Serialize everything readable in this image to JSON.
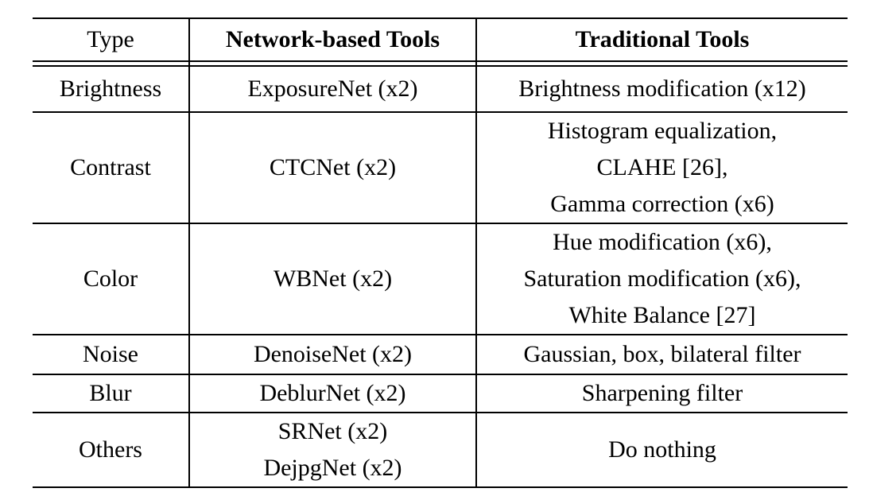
{
  "table": {
    "headers": [
      "Type",
      "Network-based Tools",
      "Traditional Tools"
    ],
    "rows": [
      {
        "type": "Brightness",
        "network": [
          "ExposureNet (x2)"
        ],
        "traditional": [
          "Brightness modification (x12)"
        ]
      },
      {
        "type": "Contrast",
        "network": [
          "CTCNet (x2)"
        ],
        "traditional": [
          "Histogram equalization,",
          "CLAHE [26],",
          "Gamma correction (x6)"
        ]
      },
      {
        "type": "Color",
        "network": [
          "WBNet (x2)"
        ],
        "traditional": [
          "Hue modification (x6),",
          "Saturation modification (x6),",
          "White Balance [27]"
        ]
      },
      {
        "type": "Noise",
        "network": [
          "DenoiseNet (x2)"
        ],
        "traditional": [
          "Gaussian, box, bilateral filter"
        ]
      },
      {
        "type": "Blur",
        "network": [
          "DeblurNet (x2)"
        ],
        "traditional": [
          "Sharpening filter"
        ]
      },
      {
        "type": "Others",
        "network": [
          "SRNet (x2)",
          "DejpgNet (x2)"
        ],
        "traditional": [
          "Do nothing"
        ]
      }
    ]
  }
}
